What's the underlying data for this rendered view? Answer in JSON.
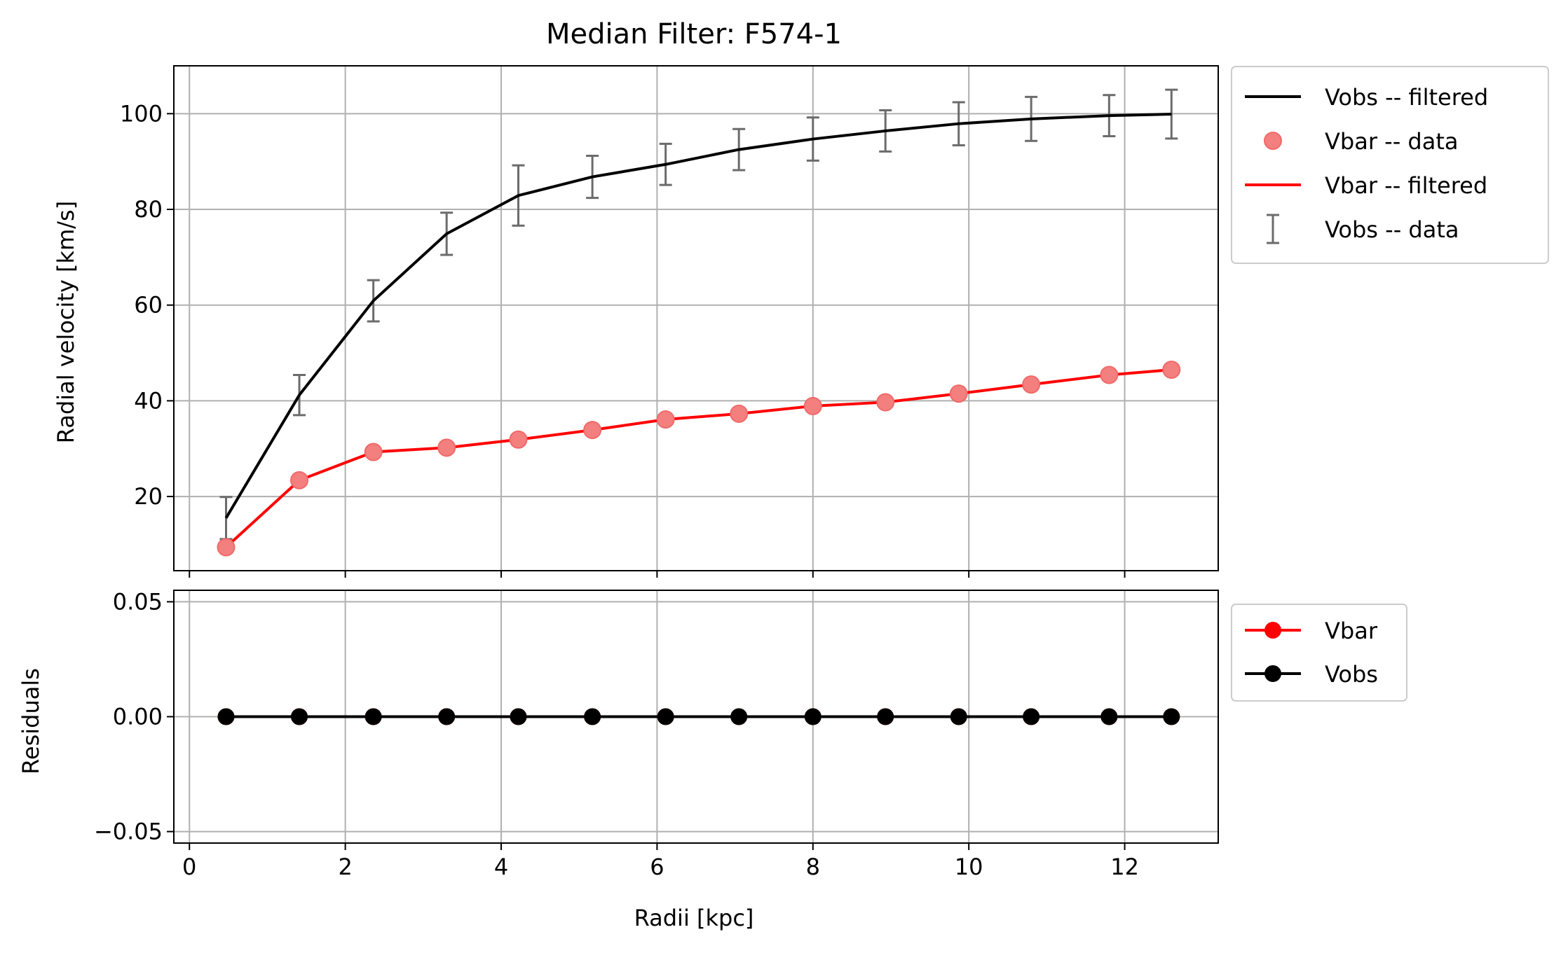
{
  "figure_title": "Median Filter: F574-1",
  "colors": {
    "vobs": "#000000",
    "vbar": "#ff0000",
    "vbar_marker_fill": "#f47f7f",
    "errorbar": "#6b6b6b",
    "grid": "#b0b0b0"
  },
  "chart_data": [
    {
      "type": "line",
      "title": "Median Filter: F574-1",
      "xlabel": "",
      "ylabel": "Radial velocity [km/s]",
      "xlim": [
        -0.2,
        13.2
      ],
      "ylim": [
        4.5,
        110
      ],
      "x_ticks": [
        0,
        2,
        4,
        6,
        8,
        10,
        12
      ],
      "y_ticks": [
        20,
        40,
        60,
        80,
        100
      ],
      "y_tick_labels": [
        "20",
        "40",
        "60",
        "80",
        "100"
      ],
      "grid": true,
      "legend_position": "outside-right-top",
      "x": [
        0.47,
        1.41,
        2.36,
        3.3,
        4.22,
        5.17,
        6.11,
        7.05,
        8.0,
        8.93,
        9.87,
        10.8,
        11.8,
        12.6
      ],
      "series": [
        {
          "name": "Vobs -- filtered",
          "style": "line",
          "values": [
            15.5,
            41.2,
            60.9,
            74.9,
            82.9,
            86.8,
            89.4,
            92.5,
            94.7,
            96.4,
            97.9,
            98.9,
            99.6,
            99.9
          ]
        },
        {
          "name": "Vbar -- data",
          "style": "markers",
          "values": [
            9.4,
            23.4,
            29.3,
            30.2,
            31.9,
            33.9,
            36.1,
            37.3,
            38.9,
            39.7,
            41.5,
            43.4,
            45.4,
            46.5
          ]
        },
        {
          "name": "Vbar -- filtered",
          "style": "line",
          "values": [
            9.4,
            23.4,
            29.3,
            30.2,
            31.9,
            33.9,
            36.1,
            37.3,
            38.9,
            39.7,
            41.5,
            43.4,
            45.4,
            46.5
          ]
        },
        {
          "name": "Vobs -- data",
          "style": "errorbar",
          "values": [
            15.5,
            41.2,
            60.9,
            74.9,
            82.9,
            86.8,
            89.4,
            92.5,
            94.7,
            96.4,
            97.9,
            98.9,
            99.6,
            99.9
          ],
          "errors": [
            4.4,
            4.2,
            4.3,
            4.4,
            6.3,
            4.4,
            4.3,
            4.3,
            4.5,
            4.3,
            4.5,
            4.6,
            4.3,
            5.1
          ]
        }
      ]
    },
    {
      "type": "line",
      "title": "",
      "xlabel": "Radii [kpc]",
      "ylabel": "Residuals",
      "xlim": [
        -0.2,
        13.2
      ],
      "ylim": [
        -0.055,
        0.055
      ],
      "x_ticks": [
        0,
        2,
        4,
        6,
        8,
        10,
        12
      ],
      "x_tick_labels": [
        "0",
        "2",
        "4",
        "6",
        "8",
        "10",
        "12"
      ],
      "y_ticks": [
        -0.05,
        0.0,
        0.05
      ],
      "y_tick_labels": [
        "−0.05",
        "0.00",
        "0.05"
      ],
      "grid": true,
      "legend_position": "outside-right-top",
      "x": [
        0.47,
        1.41,
        2.36,
        3.3,
        4.22,
        5.17,
        6.11,
        7.05,
        8.0,
        8.93,
        9.87,
        10.8,
        11.8,
        12.6
      ],
      "series": [
        {
          "name": "Vbar",
          "style": "line-markers",
          "values": [
            0,
            0,
            0,
            0,
            0,
            0,
            0,
            0,
            0,
            0,
            0,
            0,
            0,
            0
          ]
        },
        {
          "name": "Vobs",
          "style": "line-markers",
          "values": [
            0,
            0,
            0,
            0,
            0,
            0,
            0,
            0,
            0,
            0,
            0,
            0,
            0,
            0
          ]
        }
      ]
    }
  ]
}
